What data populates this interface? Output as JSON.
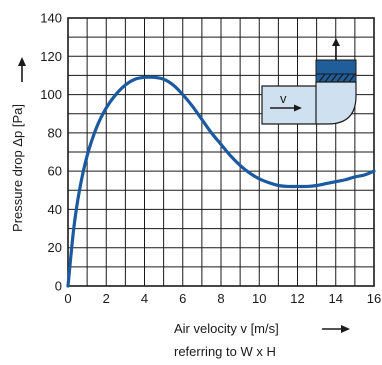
{
  "chart_data": {
    "type": "line",
    "title": "",
    "xlabel": "Air velocity v [m/s]",
    "xlabel_note": "referring to W x H",
    "ylabel": "Pressure drop Δp [Pa]",
    "xlim": [
      0,
      16
    ],
    "ylim": [
      0,
      140
    ],
    "x_ticks": [
      0,
      2,
      4,
      6,
      8,
      10,
      12,
      14,
      16
    ],
    "y_ticks": [
      0,
      20,
      40,
      60,
      80,
      100,
      120,
      140
    ],
    "grid": true,
    "series": [
      {
        "x": [
          0,
          0.3,
          0.6,
          1,
          1.5,
          2,
          2.5,
          3,
          3.5,
          4,
          4.5,
          5,
          5.5,
          6,
          6.5,
          7,
          7.5,
          8,
          8.5,
          9,
          9.5,
          10,
          10.5,
          11,
          11.5,
          12,
          12.5,
          13,
          13.5,
          14,
          14.5,
          15,
          15.5,
          16
        ],
        "y": [
          0,
          30,
          50,
          68,
          83,
          93,
          100,
          105,
          108,
          109,
          109,
          108,
          105,
          100,
          94,
          87,
          80,
          74,
          68,
          63,
          59,
          56,
          54,
          52.5,
          52,
          52,
          52,
          52.5,
          53.5,
          54.5,
          55.5,
          57,
          58,
          60
        ],
        "color": "#1b5aa0"
      }
    ],
    "inset": {
      "description_icon": "duct-bend-with-filter-icon",
      "label": "v"
    }
  }
}
